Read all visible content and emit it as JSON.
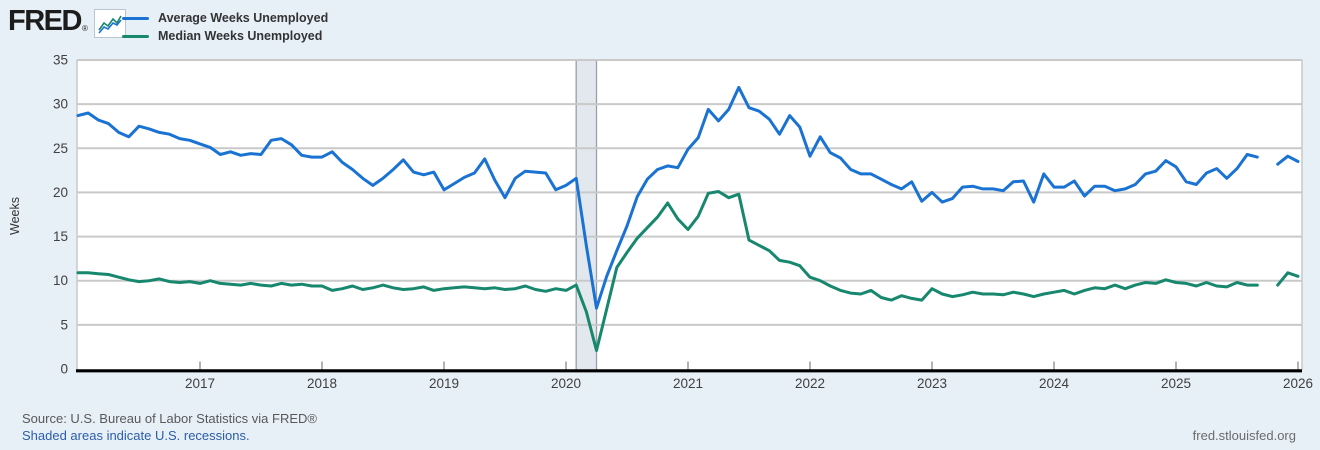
{
  "header": {
    "logo_text": "FRED",
    "registered_mark": "®"
  },
  "legend": [
    {
      "label": "Average Weeks Unemployed",
      "color": "#1a73d2"
    },
    {
      "label": "Median Weeks Unemployed",
      "color": "#17876d"
    }
  ],
  "footer": {
    "source": "Source: U.S. Bureau of Labor Statistics via FRED®",
    "recession_note": "Shaded areas indicate U.S. recessions.",
    "site": "fred.stlouisfed.org"
  },
  "chart_data": {
    "type": "line",
    "title": "",
    "ylabel": "Weeks",
    "ylim": [
      0,
      35
    ],
    "ytick_step": 5,
    "x_start": "2016-01",
    "x_end": "2026-01",
    "x_tick_labels": [
      "2017",
      "2018",
      "2019",
      "2020",
      "2021",
      "2022",
      "2023",
      "2024",
      "2025",
      "2026"
    ],
    "grid": "horizontal",
    "legend_position": "top-left",
    "recession_band": {
      "from": "2020-02",
      "to": "2020-04",
      "start_index": 49,
      "end_index": 51,
      "fill": "#e2e8ed",
      "edge": "#989fa6"
    },
    "gap_note": "no data plotted for 2025-10",
    "series": [
      {
        "name": "Average Weeks Unemployed",
        "color": "#1a73d2",
        "values": [
          28.7,
          29.0,
          28.2,
          27.8,
          26.8,
          26.3,
          27.5,
          27.2,
          26.8,
          26.6,
          26.1,
          25.9,
          25.5,
          25.1,
          24.3,
          24.6,
          24.2,
          24.4,
          24.3,
          25.9,
          26.1,
          25.4,
          24.2,
          24.0,
          24.0,
          24.6,
          23.4,
          22.6,
          21.6,
          20.8,
          21.6,
          22.6,
          23.7,
          22.3,
          22.0,
          22.3,
          20.3,
          21.0,
          21.7,
          22.2,
          23.8,
          21.4,
          19.4,
          21.6,
          22.4,
          22.3,
          22.2,
          20.3,
          20.8,
          21.6,
          14.0,
          6.9,
          10.5,
          13.4,
          16.2,
          19.5,
          21.5,
          22.6,
          23.0,
          22.8,
          24.9,
          26.2,
          29.4,
          28.1,
          29.4,
          31.9,
          29.6,
          29.2,
          28.3,
          26.6,
          28.7,
          27.4,
          24.1,
          26.3,
          24.5,
          23.9,
          22.6,
          22.1,
          22.1,
          21.5,
          20.9,
          20.4,
          21.2,
          19.0,
          20.0,
          18.9,
          19.3,
          20.6,
          20.7,
          20.4,
          20.4,
          20.2,
          21.2,
          21.3,
          18.9,
          22.1,
          20.6,
          20.6,
          21.3,
          19.6,
          20.7,
          20.7,
          20.2,
          20.4,
          20.9,
          22.1,
          22.4,
          23.6,
          22.9,
          21.2,
          20.9,
          22.2,
          22.7,
          21.6,
          22.7,
          24.3,
          24.0,
          null,
          23.2,
          24.1,
          23.5
        ]
      },
      {
        "name": "Median Weeks Unemployed",
        "color": "#17876d",
        "values": [
          10.9,
          10.9,
          10.8,
          10.7,
          10.4,
          10.1,
          9.9,
          10.0,
          10.2,
          9.9,
          9.8,
          9.9,
          9.7,
          10.0,
          9.7,
          9.6,
          9.5,
          9.7,
          9.5,
          9.4,
          9.7,
          9.5,
          9.6,
          9.4,
          9.4,
          8.9,
          9.1,
          9.4,
          9.0,
          9.2,
          9.5,
          9.2,
          9.0,
          9.1,
          9.3,
          8.9,
          9.1,
          9.2,
          9.3,
          9.2,
          9.1,
          9.2,
          9.0,
          9.1,
          9.4,
          9.0,
          8.8,
          9.1,
          8.9,
          9.5,
          6.5,
          2.1,
          6.8,
          11.5,
          13.2,
          14.8,
          16.0,
          17.2,
          18.8,
          17.0,
          15.8,
          17.3,
          19.9,
          20.1,
          19.4,
          19.8,
          14.6,
          14.0,
          13.4,
          12.3,
          12.1,
          11.7,
          10.4,
          10.0,
          9.4,
          8.9,
          8.6,
          8.5,
          8.9,
          8.1,
          7.8,
          8.3,
          8.0,
          7.8,
          9.1,
          8.5,
          8.2,
          8.4,
          8.7,
          8.5,
          8.5,
          8.4,
          8.7,
          8.5,
          8.2,
          8.5,
          8.7,
          8.9,
          8.5,
          8.9,
          9.2,
          9.1,
          9.5,
          9.1,
          9.5,
          9.8,
          9.7,
          10.1,
          9.8,
          9.7,
          9.4,
          9.8,
          9.4,
          9.3,
          9.8,
          9.5,
          9.5,
          null,
          9.5,
          10.9,
          10.5
        ]
      }
    ]
  }
}
